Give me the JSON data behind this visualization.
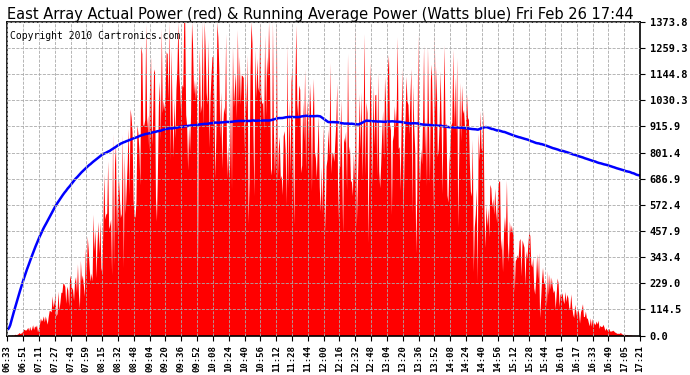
{
  "title": "East Array Actual Power (red) & Running Average Power (Watts blue) Fri Feb 26 17:44",
  "copyright": "Copyright 2010 Cartronics.com",
  "yticks": [
    0.0,
    114.5,
    229.0,
    343.4,
    457.9,
    572.4,
    686.9,
    801.4,
    915.9,
    1030.3,
    1144.8,
    1259.3,
    1373.8
  ],
  "ymax": 1373.8,
  "ymin": 0.0,
  "background_color": "#ffffff",
  "plot_background": "#ffffff",
  "fill_color": "red",
  "line_color": "blue",
  "title_fontsize": 10.5,
  "copyright_fontsize": 7,
  "time_labels": [
    "06:33",
    "06:51",
    "07:11",
    "07:27",
    "07:43",
    "07:59",
    "08:15",
    "08:32",
    "08:48",
    "09:04",
    "09:20",
    "09:36",
    "09:52",
    "10:08",
    "10:24",
    "10:40",
    "10:56",
    "11:12",
    "11:28",
    "11:44",
    "12:00",
    "12:16",
    "12:32",
    "12:48",
    "13:04",
    "13:20",
    "13:36",
    "13:52",
    "14:08",
    "14:24",
    "14:40",
    "14:56",
    "15:12",
    "15:28",
    "15:44",
    "16:01",
    "16:17",
    "16:33",
    "16:49",
    "17:05",
    "17:21"
  ]
}
